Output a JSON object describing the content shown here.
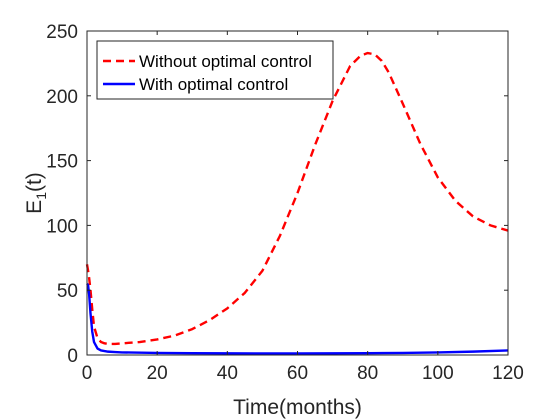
{
  "chart_data": {
    "type": "line",
    "xlabel": "Time(months)",
    "ylabel_main": "E",
    "ylabel_sub": "1",
    "ylabel_tail": "(t)",
    "xlim": [
      0,
      120
    ],
    "ylim": [
      0,
      250
    ],
    "xticks": [
      0,
      20,
      40,
      60,
      80,
      100,
      120
    ],
    "yticks": [
      0,
      50,
      100,
      150,
      200,
      250
    ],
    "grid": false,
    "legend_position": "top-left",
    "series": [
      {
        "name": "Without optimal control",
        "color": "#ff0000",
        "style": "dashed",
        "x": [
          0,
          0.5,
          1,
          1.5,
          2,
          3,
          4,
          5,
          6,
          8,
          10,
          15,
          20,
          25,
          30,
          35,
          40,
          45,
          50,
          55,
          60,
          65,
          70,
          75,
          78,
          80,
          82,
          84,
          86,
          90,
          95,
          100,
          105,
          110,
          115,
          120
        ],
        "y": [
          70,
          62,
          50,
          35,
          22,
          13,
          10,
          9,
          8.5,
          8.5,
          9,
          10,
          12,
          15,
          20,
          27,
          36,
          48,
          65,
          92,
          125,
          162,
          196,
          223,
          231,
          233,
          232,
          227,
          218,
          194,
          163,
          137,
          119,
          107,
          100,
          96
        ]
      },
      {
        "name": "With optimal control",
        "color": "#0000ff",
        "style": "solid",
        "x": [
          0,
          0.3,
          0.6,
          1,
          1.5,
          2,
          3,
          4,
          5,
          6,
          8,
          10,
          20,
          30,
          40,
          50,
          60,
          70,
          80,
          90,
          100,
          110,
          120
        ],
        "y": [
          55,
          54,
          47,
          32,
          18,
          10,
          5,
          3.5,
          3,
          2.6,
          2.3,
          2,
          1.6,
          1.4,
          1.3,
          1.2,
          1.2,
          1.3,
          1.4,
          1.6,
          2,
          2.6,
          3.5
        ]
      }
    ]
  }
}
